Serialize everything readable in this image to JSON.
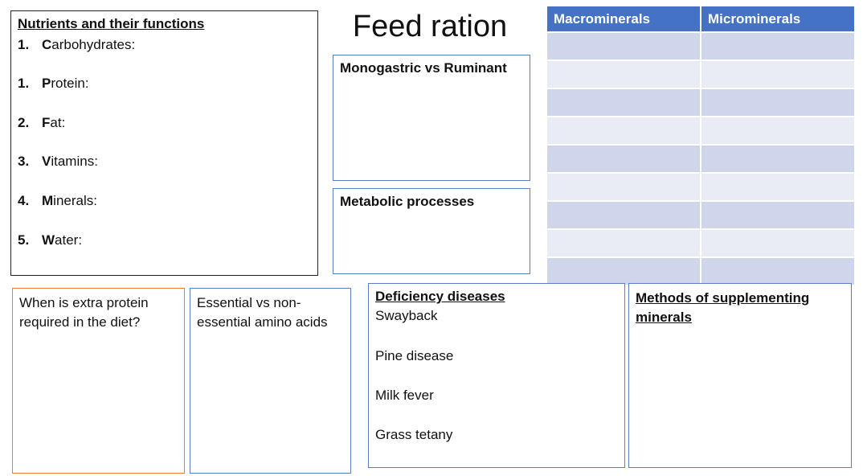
{
  "title": "Feed ration",
  "nutrients": {
    "heading": "Nutrients and their functions",
    "items": [
      {
        "num": "1.",
        "initial": "C",
        "rest": "arbohydrates:"
      },
      {
        "num": "1.",
        "initial": "P",
        "rest": "rotein:"
      },
      {
        "num": "2.",
        "initial": "F",
        "rest": "at:"
      },
      {
        "num": "3.",
        "initial": "V",
        "rest": "itamins:"
      },
      {
        "num": "4.",
        "initial": "M",
        "rest": "inerals:"
      },
      {
        "num": "5.",
        "initial": "W",
        "rest": "ater:"
      }
    ]
  },
  "monogastric": {
    "label": "Monogastric vs Ruminant"
  },
  "metabolic": {
    "label": "Metabolic processes"
  },
  "minerals_table": {
    "headers": [
      "Macrominerals",
      "Microminerals"
    ],
    "row_count": 9,
    "colors": {
      "header": "#4472c4",
      "row_odd": "#cfd5ea",
      "row_even": "#e9ebf5"
    }
  },
  "protein_question": {
    "text": "When is extra protein required in the diet?"
  },
  "amino_acids": {
    "text": "Essential vs non-essential amino acids"
  },
  "deficiency": {
    "heading": "Deficiency diseases",
    "items": [
      "Swayback",
      "Pine disease",
      "Milk fever",
      "Grass tetany"
    ]
  },
  "methods": {
    "heading": "Methods of supplementing minerals"
  },
  "colors": {
    "orange_border": "#ed7d31",
    "blue_border": "#5a7fc4"
  }
}
